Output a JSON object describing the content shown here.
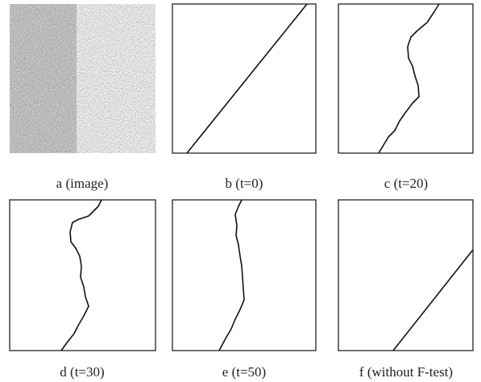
{
  "panels": [
    {
      "caption": "a (image)"
    },
    {
      "caption": "b (t=0)"
    },
    {
      "caption": "c (t=20)"
    },
    {
      "caption": "d (t=30)"
    },
    {
      "caption": "e (t=50)"
    },
    {
      "caption": "f (without F-test)"
    }
  ]
}
